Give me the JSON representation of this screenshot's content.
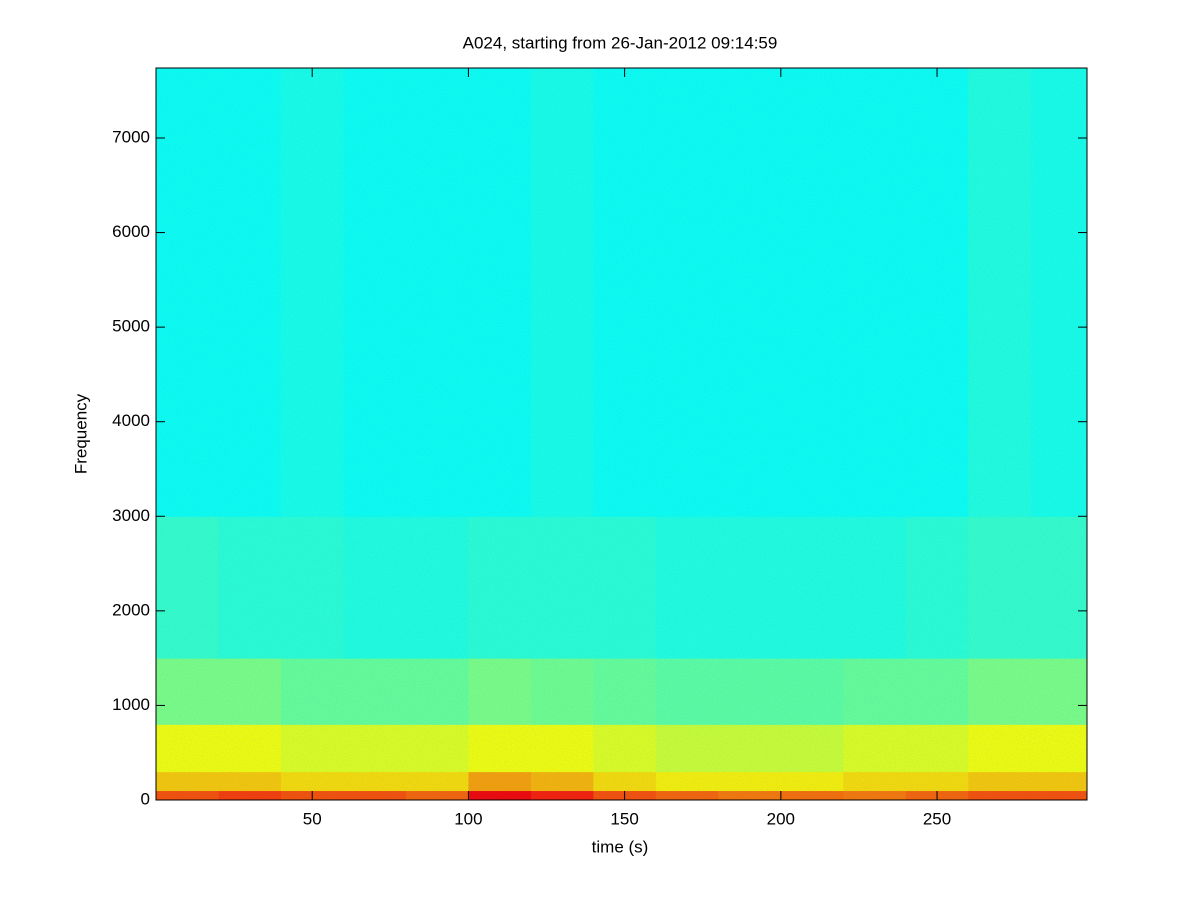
{
  "chart_data": {
    "type": "spectrogram",
    "title": "A024, starting from 26-Jan-2012 09:14:59",
    "x_label": "time (s)",
    "y_label": "Frequency",
    "xlim": [
      0,
      298
    ],
    "ylim": [
      0,
      7740
    ],
    "xticks": [
      50,
      100,
      150,
      200,
      250
    ],
    "yticks": [
      0,
      1000,
      2000,
      3000,
      4000,
      5000,
      6000,
      7000
    ],
    "colormap": "jet",
    "zlim": [
      0,
      1
    ],
    "xbins": [
      0,
      20,
      40,
      60,
      80,
      100,
      120,
      140,
      160,
      180,
      200,
      220,
      240,
      260,
      280,
      298
    ],
    "ybins": [
      0,
      100,
      300,
      800,
      1500,
      3000,
      7740
    ],
    "z": [
      [
        0.8,
        0.82,
        0.8,
        0.8,
        0.78,
        0.88,
        0.85,
        0.8,
        0.78,
        0.76,
        0.77,
        0.76,
        0.78,
        0.8,
        0.8
      ],
      [
        0.68,
        0.68,
        0.66,
        0.66,
        0.66,
        0.72,
        0.7,
        0.66,
        0.64,
        0.64,
        0.64,
        0.66,
        0.66,
        0.68,
        0.68
      ],
      [
        0.62,
        0.62,
        0.6,
        0.6,
        0.6,
        0.62,
        0.62,
        0.6,
        0.58,
        0.58,
        0.58,
        0.6,
        0.6,
        0.62,
        0.62
      ],
      [
        0.5,
        0.5,
        0.48,
        0.48,
        0.48,
        0.5,
        0.49,
        0.48,
        0.47,
        0.47,
        0.47,
        0.48,
        0.48,
        0.5,
        0.5
      ],
      [
        0.43,
        0.42,
        0.42,
        0.41,
        0.41,
        0.42,
        0.42,
        0.42,
        0.41,
        0.41,
        0.41,
        0.41,
        0.42,
        0.43,
        0.43
      ],
      [
        0.39,
        0.39,
        0.4,
        0.39,
        0.39,
        0.39,
        0.4,
        0.39,
        0.39,
        0.39,
        0.39,
        0.39,
        0.39,
        0.41,
        0.4
      ]
    ]
  }
}
